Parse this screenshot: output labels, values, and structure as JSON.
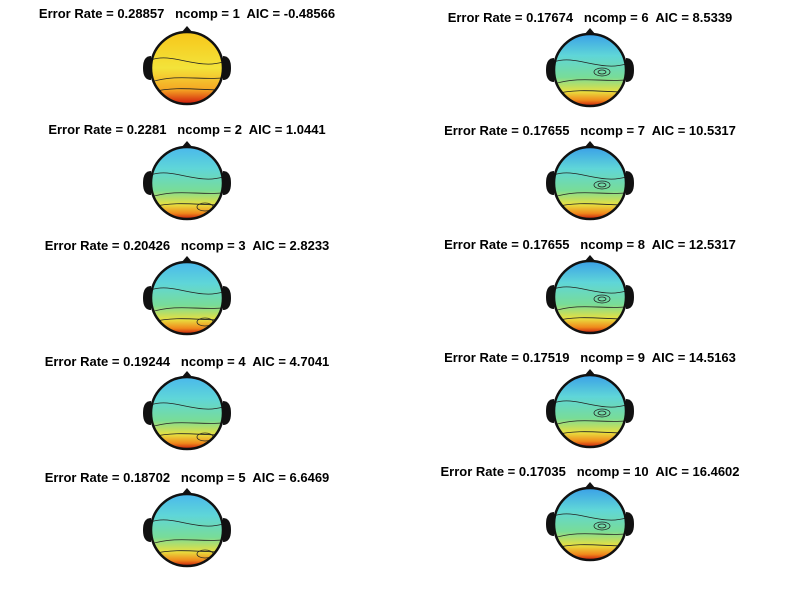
{
  "panels": [
    {
      "title": "Error Rate = 0.28857   ncomp = 1  AIC = -0.48566"
    },
    {
      "title": "Error Rate = 0.2281   ncomp = 2  AIC = 1.0441"
    },
    {
      "title": "Error Rate = 0.20426   ncomp = 3  AIC = 2.8233"
    },
    {
      "title": "Error Rate = 0.19244   ncomp = 4  AIC = 4.7041"
    },
    {
      "title": "Error Rate = 0.18702   ncomp = 5  AIC = 6.6469"
    },
    {
      "title": "Error Rate = 0.17674   ncomp = 6  AIC = 8.5339"
    },
    {
      "title": "Error Rate = 0.17655   ncomp = 7  AIC = 10.5317"
    },
    {
      "title": "Error Rate = 0.17655   ncomp = 8  AIC = 12.5317"
    },
    {
      "title": "Error Rate = 0.17519   ncomp = 9  AIC = 14.5163"
    },
    {
      "title": "Error Rate = 0.17035   ncomp = 10  AIC = 16.4602"
    }
  ]
}
